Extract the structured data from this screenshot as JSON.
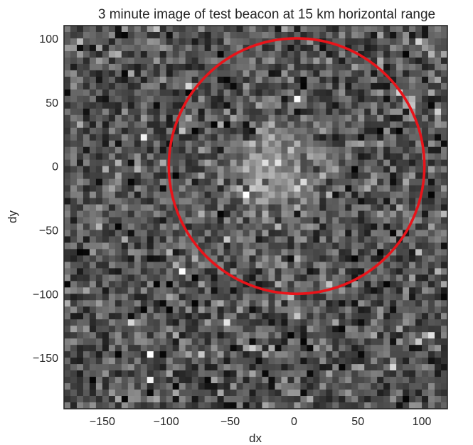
{
  "chart_data": {
    "type": "heatmap",
    "title": "3 minute image of test beacon at 15 km horizontal range",
    "xlabel": "dx",
    "ylabel": "dy",
    "xlim": [
      -180,
      120
    ],
    "ylim": [
      -190,
      110
    ],
    "xticks": [
      -150,
      -100,
      -50,
      0,
      50,
      100
    ],
    "yticks": [
      100,
      50,
      0,
      -50,
      -100,
      -150
    ],
    "xtick_labels": [
      "−150",
      "−100",
      "−50",
      "0",
      "50",
      "100"
    ],
    "ytick_labels": [
      "100",
      "50",
      "0",
      "−50",
      "−100",
      "−150"
    ],
    "colormap": "gray",
    "grid_cells": [
      60,
      60
    ],
    "noise_mean": 0.33,
    "hotspot": {
      "dx": -15,
      "dy": -5,
      "peak": 0.9
    },
    "circle": {
      "center_dx": 2,
      "center_dy": 0,
      "radius": 100,
      "color": "#e8141a"
    }
  }
}
